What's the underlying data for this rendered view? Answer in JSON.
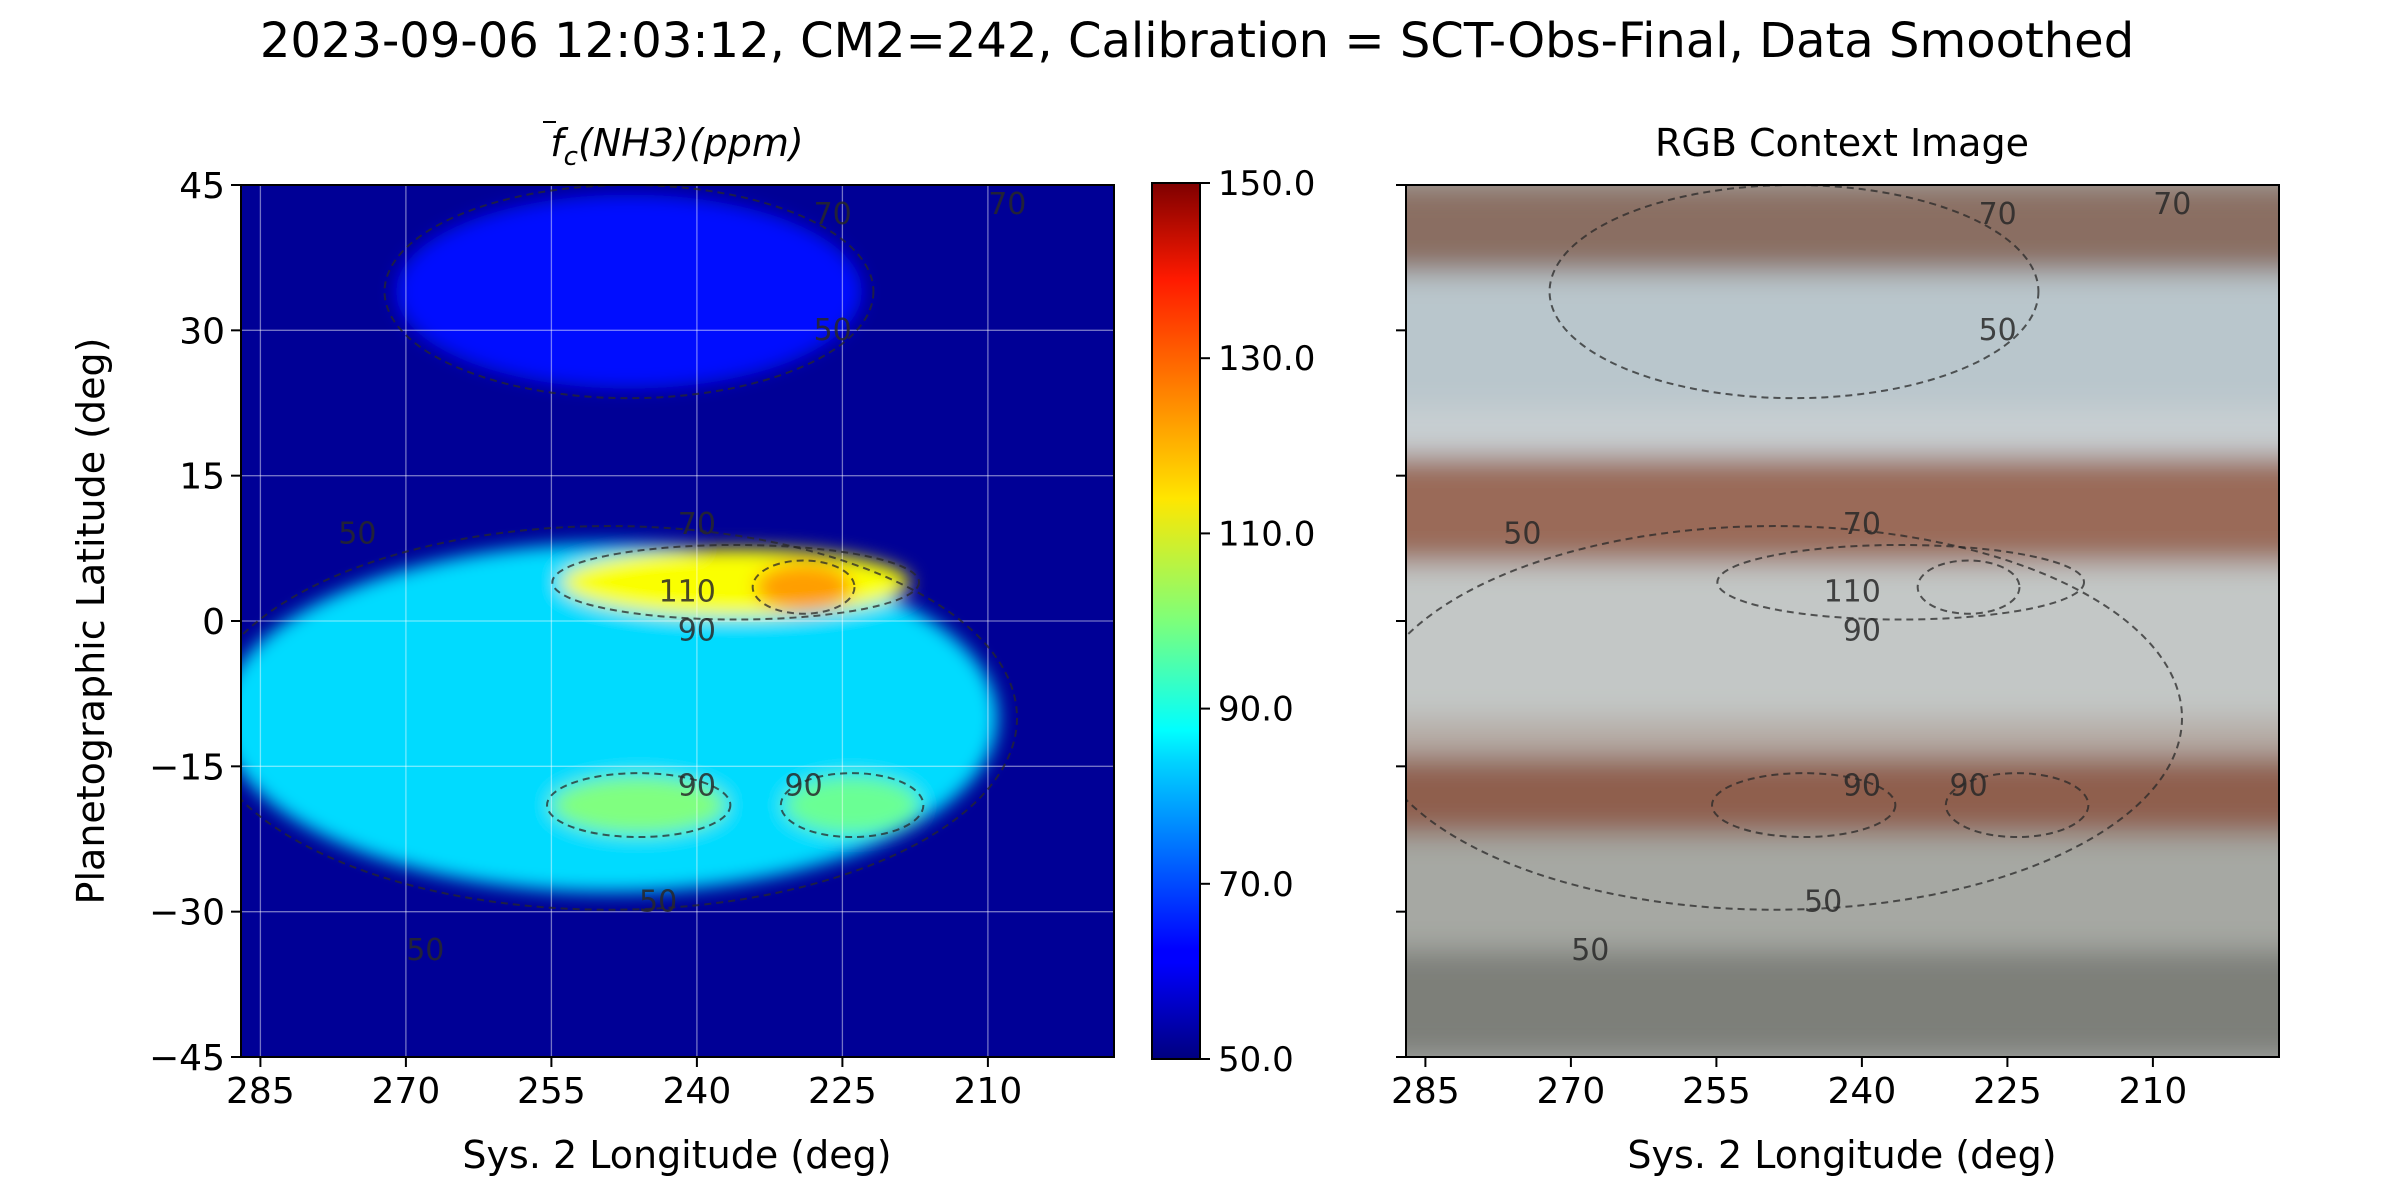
{
  "suptitle": "2023-09-06 12:03:12, CM2=242, Calibration = SCT-Obs-Final, Data Smoothed",
  "left_panel": {
    "title_main": "f",
    "title_sub": "c",
    "title_rest": "(NH3)(ppm)",
    "xlabel": "Sys. 2 Longitude (deg)",
    "ylabel": "Planetographic Latitude (deg)"
  },
  "right_panel": {
    "title": "RGB Context Image",
    "xlabel": "Sys. 2 Longitude (deg)"
  },
  "colorbar": {
    "ticks": [
      "150.0",
      "130.0",
      "110.0",
      "90.0",
      "70.0",
      "50.0"
    ],
    "tick_values": [
      150,
      130,
      110,
      90,
      70,
      50
    ],
    "colormap": "jet"
  },
  "contour_labels": {
    "c50": "50",
    "c70": "70",
    "c90": "90",
    "c110": "110"
  },
  "chart_data": [
    {
      "type": "heatmap",
      "title": "f̄c(NH3)(ppm)",
      "xlabel": "Sys. 2 Longitude (deg)",
      "ylabel": "Planetographic Latitude (deg)",
      "xlim": [
        287,
        197
      ],
      "ylim": [
        -45,
        45
      ],
      "x_ticks": [
        "285",
        "270",
        "255",
        "240",
        "225",
        "210"
      ],
      "y_ticks": [
        "45",
        "30",
        "15",
        "0",
        "−15",
        "−30",
        "−45"
      ],
      "x_tick_values": [
        285,
        270,
        255,
        240,
        225,
        210
      ],
      "y_tick_values": [
        45,
        30,
        15,
        0,
        -15,
        -30,
        -45
      ],
      "grid": true,
      "clim": [
        50,
        150
      ],
      "contour_levels": [
        50,
        70,
        90,
        110
      ],
      "features": [
        {
          "lat": 4,
          "lon_center": 236,
          "lon_halfwidth": 18,
          "lat_halfwidth": 3.5,
          "value": 112
        },
        {
          "lat": 3.5,
          "lon_center": 229,
          "lon_halfwidth": 5,
          "lat_halfwidth": 2.5,
          "value": 122
        },
        {
          "lat": -19,
          "lon_center": 246,
          "lon_halfwidth": 9,
          "lat_halfwidth": 3,
          "value": 100
        },
        {
          "lat": -19,
          "lon_center": 224,
          "lon_halfwidth": 7,
          "lat_halfwidth": 3,
          "value": 98
        },
        {
          "lat": -10,
          "lon_center": 249,
          "lon_halfwidth": 40,
          "lat_halfwidth": 18,
          "value": 84
        },
        {
          "lat": 34,
          "lon_center": 247,
          "lon_halfwidth": 24,
          "lat_halfwidth": 10,
          "value": 64
        }
      ]
    },
    {
      "type": "heatmap",
      "title": "RGB Context Image",
      "xlabel": "Sys. 2 Longitude (deg)",
      "xlim": [
        287,
        197
      ],
      "ylim": [
        -45,
        45
      ],
      "x_ticks": [
        "285",
        "270",
        "255",
        "240",
        "225",
        "210"
      ],
      "x_tick_values": [
        285,
        270,
        255,
        240,
        225,
        210
      ],
      "contour_levels": [
        50,
        70,
        90,
        110
      ],
      "bands": [
        {
          "lat_top": 45,
          "lat_bottom": 36,
          "color": "#8a6e62"
        },
        {
          "lat_top": 36,
          "lat_bottom": 22,
          "color": "#b9c6cc"
        },
        {
          "lat_top": 22,
          "lat_bottom": 17,
          "color": "#c8cfd2"
        },
        {
          "lat_top": 17,
          "lat_bottom": 6,
          "color": "#9a6b58"
        },
        {
          "lat_top": 6,
          "lat_bottom": -10,
          "color": "#c3c7c6"
        },
        {
          "lat_top": -10,
          "lat_bottom": -14,
          "color": "#b5aca5"
        },
        {
          "lat_top": -14,
          "lat_bottom": -22,
          "color": "#8f5e4e"
        },
        {
          "lat_top": -22,
          "lat_bottom": -34,
          "color": "#a6a8a3"
        },
        {
          "lat_top": -34,
          "lat_bottom": -45,
          "color": "#7d7f79"
        }
      ]
    }
  ]
}
